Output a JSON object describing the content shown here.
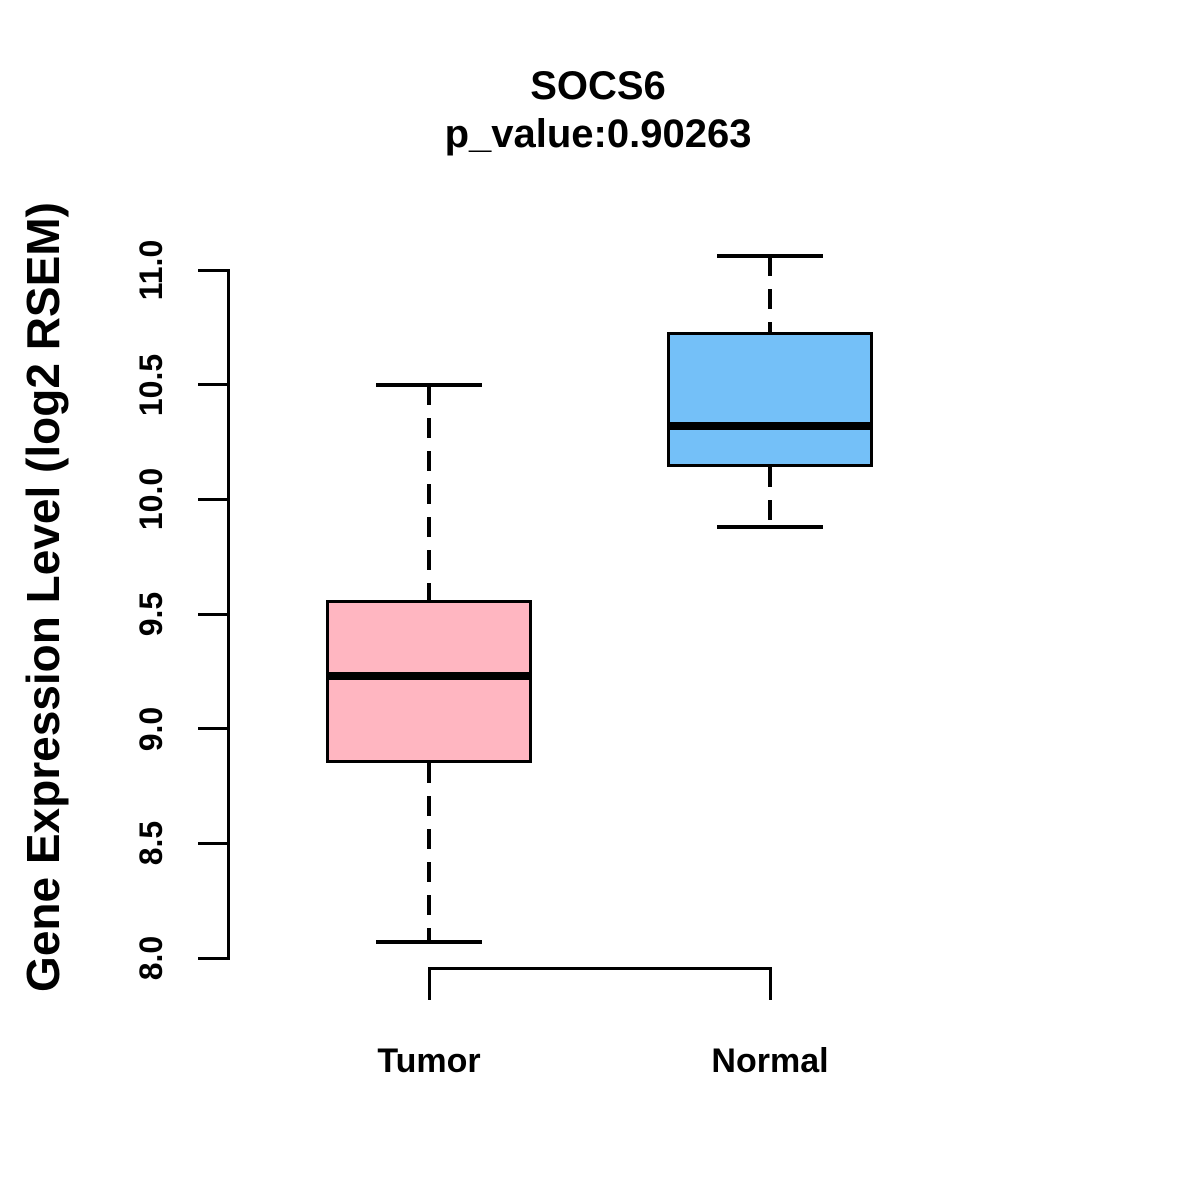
{
  "title": "SOCS6",
  "subtitle": "p_value:0.90263",
  "y_axis_label": "Gene Expression Level (log2 RSEM)",
  "colors": {
    "tumor_fill": "#FFB6C1",
    "normal_fill": "#74C0F8",
    "line": "#000000",
    "background": "#FFFFFF"
  },
  "chart_data": {
    "type": "boxplot",
    "title": "SOCS6",
    "subtitle": "p_value:0.90263",
    "ylabel": "Gene Expression Level (log2 RSEM)",
    "xlabel": "",
    "categories": [
      "Tumor",
      "Normal"
    ],
    "series": [
      {
        "name": "Tumor",
        "lower_whisker": 8.07,
        "q1": 8.85,
        "median": 9.23,
        "q3": 9.56,
        "upper_whisker": 10.5,
        "fill": "#FFB6C1"
      },
      {
        "name": "Normal",
        "lower_whisker": 9.88,
        "q1": 10.14,
        "median": 10.32,
        "q3": 10.73,
        "upper_whisker": 11.06,
        "fill": "#74C0F8"
      }
    ],
    "ylim": [
      8.0,
      11.0
    ],
    "yticks": [
      8.0,
      8.5,
      9.0,
      9.5,
      10.0,
      10.5,
      11.0
    ],
    "ytick_labels": [
      "8.0",
      "8.5",
      "9.0",
      "9.5",
      "10.0",
      "10.5",
      "11.0"
    ],
    "grid": false,
    "legend": false,
    "box_style": "r-base-graphics"
  }
}
